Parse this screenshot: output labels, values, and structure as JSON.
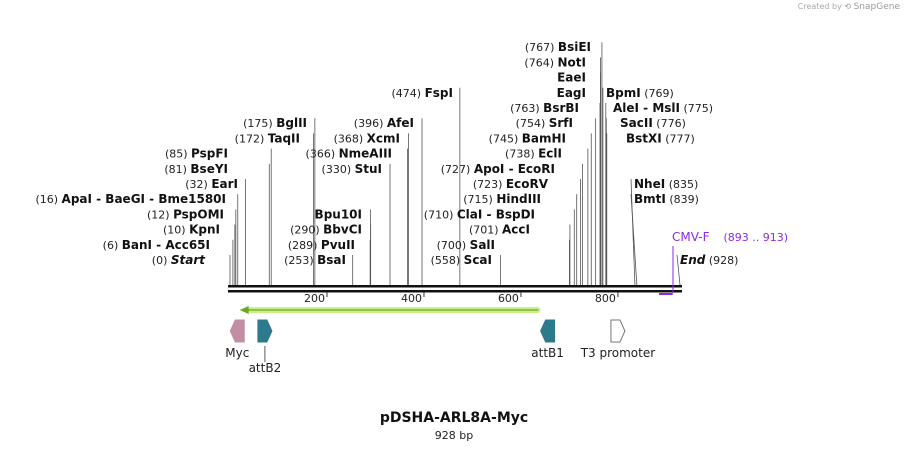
{
  "credit": {
    "prefix": "Created by",
    "brand": "SnapGene"
  },
  "sequence": {
    "name": "pDSHA-ARL8A-Myc",
    "length_label": "928 bp",
    "length": 928
  },
  "ruler": {
    "ticks": [
      {
        "pos": 200,
        "label": "200"
      },
      {
        "pos": 400,
        "label": "400"
      },
      {
        "pos": 600,
        "label": "600"
      },
      {
        "pos": 800,
        "label": "800"
      }
    ]
  },
  "sites": [
    {
      "pos": 0,
      "num": "(0)",
      "name": "Start",
      "italic": true
    },
    {
      "pos": 6,
      "num": "(6)",
      "name": "BanI  -  Acc65I"
    },
    {
      "pos": 10,
      "num": "(10)",
      "name": "KpnI"
    },
    {
      "pos": 12,
      "num": "(12)",
      "name": "PspOMI"
    },
    {
      "pos": 16,
      "num": "(16)",
      "name": "ApaI  -  BaeGI  -  Bme1580I"
    },
    {
      "pos": 32,
      "num": "(32)",
      "name": "EarI"
    },
    {
      "pos": 81,
      "num": "(81)",
      "name": "BseYI"
    },
    {
      "pos": 85,
      "num": "(85)",
      "name": "PspFI"
    },
    {
      "pos": 172,
      "num": "(172)",
      "name": "TaqII"
    },
    {
      "pos": 175,
      "num": "(175)",
      "name": "BglII"
    },
    {
      "pos": 253,
      "num": "(253)",
      "name": "BsaI"
    },
    {
      "pos": 289,
      "num": "(289)",
      "name": "PvuII"
    },
    {
      "pos": 290,
      "num": "(290)",
      "name": "BbvCI"
    },
    {
      "pos": 290,
      "num": "",
      "name": "Bpu10I"
    },
    {
      "pos": 330,
      "num": "(330)",
      "name": "StuI"
    },
    {
      "pos": 366,
      "num": "(366)",
      "name": "NmeAIII"
    },
    {
      "pos": 368,
      "num": "(368)",
      "name": "XcmI"
    },
    {
      "pos": 396,
      "num": "(396)",
      "name": "AfeI"
    },
    {
      "pos": 474,
      "num": "(474)",
      "name": "FspI"
    },
    {
      "pos": 558,
      "num": "(558)",
      "name": "ScaI"
    },
    {
      "pos": 700,
      "num": "(700)",
      "name": "SalI"
    },
    {
      "pos": 701,
      "num": "(701)",
      "name": "AccI"
    },
    {
      "pos": 710,
      "num": "(710)",
      "name": "ClaI  -  BspDI"
    },
    {
      "pos": 715,
      "num": "(715)",
      "name": "HindIII"
    },
    {
      "pos": 723,
      "num": "(723)",
      "name": "EcoRV"
    },
    {
      "pos": 727,
      "num": "(727)",
      "name": "ApoI  -  EcoRI"
    },
    {
      "pos": 738,
      "num": "(738)",
      "name": "EclI"
    },
    {
      "pos": 745,
      "num": "(745)",
      "name": "BamHI"
    },
    {
      "pos": 754,
      "num": "(754)",
      "name": "SrfI"
    },
    {
      "pos": 763,
      "num": "(763)",
      "name": "BsrBI"
    },
    {
      "pos": 764,
      "num": "",
      "name": "EagI"
    },
    {
      "pos": 764,
      "num": "",
      "name": "EaeI"
    },
    {
      "pos": 764,
      "num": "(764)",
      "name": "NotI"
    },
    {
      "pos": 767,
      "num": "(767)",
      "name": "BsiEI"
    },
    {
      "pos": 769,
      "num": "(769)",
      "name": "BpmI",
      "num_after": true
    },
    {
      "pos": 775,
      "num": "(775)",
      "name": "AleI  -  MslI",
      "num_after": true
    },
    {
      "pos": 776,
      "num": "(776)",
      "name": "SacII",
      "num_after": true
    },
    {
      "pos": 777,
      "num": "(777)",
      "name": "BstXI",
      "num_after": true
    },
    {
      "pos": 835,
      "num": "(835)",
      "name": "NheI",
      "num_after": true
    },
    {
      "pos": 839,
      "num": "(839)",
      "name": "BmtI",
      "num_after": true
    },
    {
      "pos": 928,
      "num": "(928)",
      "name": "End",
      "italic": true,
      "num_after": true
    }
  ],
  "primer": {
    "name": "CMV-F",
    "range": "(893 .. 913)",
    "start": 893,
    "end": 913,
    "color": "#8a2be2"
  },
  "orf": {
    "start": 20,
    "end": 640,
    "direction": "reverse",
    "fill": "#ccee88",
    "stroke": "#66aa22"
  },
  "features": [
    {
      "name": "Myc",
      "pos": 15,
      "color": "#c28ea6",
      "direction": "reverse",
      "label_row": 0
    },
    {
      "name": "attB2",
      "pos": 72,
      "color": "#2d7a8c",
      "direction": "forward",
      "label_row": 1
    },
    {
      "name": "attB1",
      "pos": 655,
      "color": "#2d7a8c",
      "direction": "reverse",
      "label_row": 0
    },
    {
      "name": "T3 promoter",
      "pos": 800,
      "color": "#ffffff",
      "direction": "forward",
      "label_row": 0
    }
  ]
}
